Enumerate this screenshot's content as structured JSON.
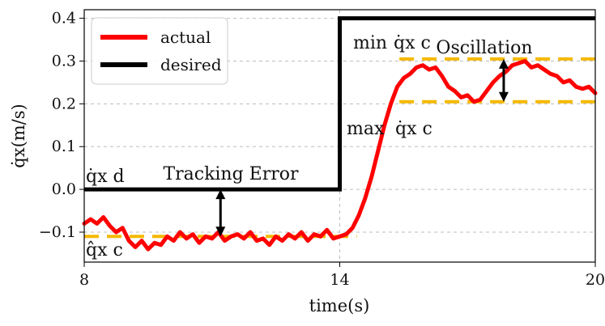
{
  "chart_data": {
    "type": "line",
    "xlabel": "time(s)",
    "ylabel": "q̇x(m/s)",
    "xlim": [
      8,
      20
    ],
    "ylim": [
      -0.17,
      0.42
    ],
    "xticks": [
      8,
      14,
      20
    ],
    "yticks": [
      -0.1,
      0.0,
      0.1,
      0.2,
      0.3,
      0.4
    ],
    "ytick_labels": [
      "−0.1",
      "0.0",
      "0.1",
      "0.2",
      "0.3",
      "0.4"
    ],
    "grid": true,
    "legend_position": "top-left",
    "series": [
      {
        "name": "actual",
        "color": "#ff0000",
        "x": [
          8.0,
          8.15,
          8.3,
          8.45,
          8.6,
          8.75,
          8.9,
          9.05,
          9.2,
          9.35,
          9.5,
          9.65,
          9.8,
          9.95,
          10.1,
          10.25,
          10.4,
          10.55,
          10.7,
          10.85,
          11.0,
          11.15,
          11.3,
          11.45,
          11.6,
          11.75,
          11.9,
          12.05,
          12.2,
          12.35,
          12.5,
          12.65,
          12.8,
          12.95,
          13.1,
          13.25,
          13.4,
          13.55,
          13.7,
          13.85,
          14.0,
          14.15,
          14.3,
          14.45,
          14.6,
          14.75,
          14.9,
          15.05,
          15.2,
          15.35,
          15.5,
          15.65,
          15.8,
          15.95,
          16.1,
          16.25,
          16.4,
          16.55,
          16.7,
          16.85,
          17.0,
          17.15,
          17.3,
          17.45,
          17.6,
          17.75,
          17.9,
          18.05,
          18.2,
          18.35,
          18.5,
          18.65,
          18.8,
          18.95,
          19.1,
          19.25,
          19.4,
          19.55,
          19.7,
          19.85,
          20.0
        ],
        "values": [
          -0.08,
          -0.07,
          -0.08,
          -0.065,
          -0.085,
          -0.1,
          -0.09,
          -0.12,
          -0.135,
          -0.12,
          -0.14,
          -0.125,
          -0.13,
          -0.11,
          -0.12,
          -0.1,
          -0.115,
          -0.105,
          -0.125,
          -0.11,
          -0.115,
          -0.1,
          -0.12,
          -0.11,
          -0.105,
          -0.115,
          -0.1,
          -0.12,
          -0.115,
          -0.13,
          -0.11,
          -0.12,
          -0.105,
          -0.115,
          -0.1,
          -0.12,
          -0.105,
          -0.11,
          -0.095,
          -0.115,
          -0.11,
          -0.105,
          -0.09,
          -0.06,
          -0.02,
          0.03,
          0.09,
          0.15,
          0.2,
          0.24,
          0.26,
          0.27,
          0.285,
          0.29,
          0.28,
          0.285,
          0.265,
          0.24,
          0.23,
          0.215,
          0.22,
          0.205,
          0.21,
          0.23,
          0.25,
          0.265,
          0.275,
          0.29,
          0.295,
          0.3,
          0.285,
          0.29,
          0.28,
          0.27,
          0.265,
          0.25,
          0.255,
          0.24,
          0.235,
          0.24,
          0.225
        ]
      },
      {
        "name": "desired",
        "color": "#000000",
        "x": [
          8,
          14,
          14,
          20
        ],
        "values": [
          0.0,
          0.0,
          0.4,
          0.4
        ]
      }
    ],
    "reference_lines": [
      {
        "color": "#f5b800",
        "y": -0.11,
        "x": [
          8,
          14.4
        ]
      },
      {
        "color": "#f5b800",
        "y": 0.305,
        "x": [
          15.4,
          20
        ]
      },
      {
        "color": "#f5b800",
        "y": 0.205,
        "x": [
          15.4,
          20
        ]
      }
    ],
    "arrows": [
      {
        "x": 11.2,
        "y1": 0.0,
        "y2": -0.11
      },
      {
        "x": 17.85,
        "y1": 0.305,
        "y2": 0.205
      }
    ],
    "annotations": {
      "tracking_error": "Tracking Error",
      "oscillation": "Oscillation",
      "min_label": "min",
      "max_label": "max",
      "q_desired": "q̇x d",
      "q_command_min": "q̇x c",
      "q_command_max": "q̇x c",
      "q_command_low": "q̂x c"
    }
  }
}
